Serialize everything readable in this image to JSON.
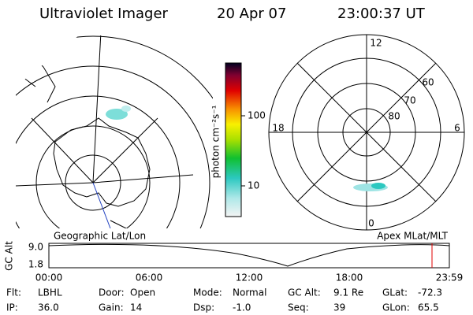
{
  "header": {
    "title": "Ultraviolet Imager",
    "date": "20 Apr 07",
    "time": "23:00:37 UT"
  },
  "left_map": {
    "label": "Geographic Lat/Lon"
  },
  "right_map": {
    "label": "Apex MLat/MLT",
    "mlt_labels": [
      "12",
      "18",
      "6",
      "0"
    ],
    "lat_labels": [
      "60",
      "70",
      "80"
    ]
  },
  "colorbar": {
    "label": "photon cm⁻²s⁻¹",
    "ticks": [
      "100",
      "10"
    ]
  },
  "timeline": {
    "axis_label": "GC Alt",
    "yticks": [
      "9.0",
      "1.8"
    ],
    "xticks": [
      "00:00",
      "06:00",
      "12:00",
      "18:00",
      "23:59"
    ]
  },
  "footer": {
    "rows": [
      [
        {
          "label": "Flt:",
          "value": "LBHL"
        },
        {
          "label": "Door:",
          "value": "Open"
        },
        {
          "label": "Mode:",
          "value": "Normal"
        },
        {
          "label": "GC Alt:",
          "value": "9.1 Re"
        },
        {
          "label": "GLat:",
          "value": "-72.3"
        }
      ],
      [
        {
          "label": "IP:",
          "value": "36.0"
        },
        {
          "label": "Gain:",
          "value": "14"
        },
        {
          "label": "Dsp:",
          "value": "-1.0"
        },
        {
          "label": "Seq:",
          "value": "39"
        },
        {
          "label": "GLon:",
          "value": "65.5"
        }
      ]
    ]
  }
}
